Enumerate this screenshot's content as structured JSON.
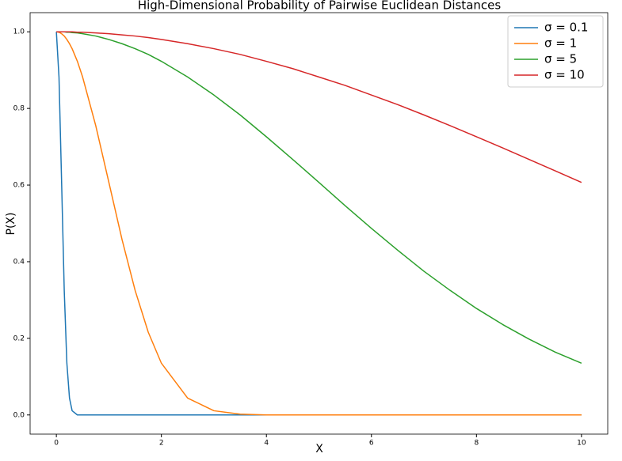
{
  "chart_data": {
    "type": "line",
    "title": "High-Dimensional Probability of Pairwise Euclidean Distances",
    "x_label": "X",
    "y_label": "P(X)",
    "x": [
      0,
      0.05,
      0.1,
      0.15,
      0.2,
      0.25,
      0.3,
      0.4,
      0.5,
      0.75,
      1,
      1.25,
      1.5,
      1.75,
      2,
      2.5,
      3,
      3.5,
      4,
      4.5,
      5,
      5.5,
      6,
      6.5,
      7,
      7.5,
      8,
      8.5,
      9,
      9.5,
      10
    ],
    "series": [
      {
        "name": "σ = 0.1",
        "color": "#1f77b4",
        "values": [
          1,
          0.882,
          0.607,
          0.325,
          0.135,
          0.044,
          0.011,
          0,
          0,
          0,
          0,
          0,
          0,
          0,
          0,
          0,
          0,
          0,
          0,
          0,
          0,
          0,
          0,
          0,
          0,
          0,
          0,
          0,
          0,
          0,
          0
        ]
      },
      {
        "name": "σ = 1",
        "color": "#ff7f0e",
        "values": [
          1,
          0.999,
          0.995,
          0.989,
          0.98,
          0.969,
          0.956,
          0.923,
          0.882,
          0.755,
          0.607,
          0.458,
          0.325,
          0.216,
          0.135,
          0.044,
          0.011,
          0.002,
          0,
          0,
          0,
          0,
          0,
          0,
          0,
          0,
          0,
          0,
          0,
          0,
          0
        ]
      },
      {
        "name": "σ = 5",
        "color": "#2ca02c",
        "values": [
          1,
          1,
          1,
          1,
          0.999,
          0.999,
          0.998,
          0.997,
          0.995,
          0.989,
          0.98,
          0.969,
          0.956,
          0.941,
          0.923,
          0.882,
          0.835,
          0.783,
          0.726,
          0.667,
          0.607,
          0.546,
          0.487,
          0.43,
          0.375,
          0.325,
          0.278,
          0.236,
          0.198,
          0.164,
          0.135
        ]
      },
      {
        "name": "σ = 10",
        "color": "#d62728",
        "values": [
          1,
          1,
          1,
          1,
          1,
          1,
          1,
          0.999,
          0.999,
          0.997,
          0.995,
          0.992,
          0.989,
          0.985,
          0.98,
          0.969,
          0.956,
          0.941,
          0.923,
          0.904,
          0.882,
          0.86,
          0.835,
          0.81,
          0.783,
          0.755,
          0.726,
          0.697,
          0.667,
          0.637,
          0.607
        ]
      }
    ],
    "xlim": [
      -0.5,
      10.5
    ],
    "ylim": [
      -0.05,
      1.05
    ],
    "xticks": [
      0,
      2,
      4,
      6,
      8,
      10
    ],
    "yticks": [
      {
        "value": 0,
        "label": "0.0"
      },
      0.2,
      0.4,
      0.6,
      0.8,
      {
        "value": 1,
        "label": "1.0"
      }
    ],
    "grid": false,
    "legend": "upper right"
  }
}
